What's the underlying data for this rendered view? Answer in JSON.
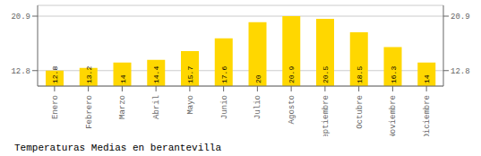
{
  "chart_data": {
    "type": "bar",
    "title": "Temperaturas Medias en berantevilla",
    "categories": [
      "Enero",
      "Febrero",
      "Marzo",
      "Abril",
      "Mayo",
      "Junio",
      "Julio",
      "Agosto",
      "Septiembre",
      "Octubre",
      "Noviembre",
      "Diciembre"
    ],
    "values": [
      12.8,
      13.2,
      14.0,
      14.4,
      15.7,
      17.6,
      20.0,
      20.9,
      20.5,
      18.5,
      16.3,
      14.0
    ],
    "color": "#FFD700",
    "ylim": [
      10.5,
      22.5
    ],
    "yticks": [
      12.8,
      20.9
    ],
    "grid": true,
    "data_labels": true
  }
}
